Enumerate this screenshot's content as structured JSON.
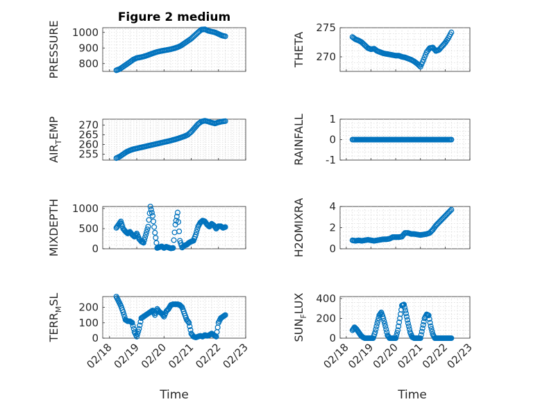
{
  "figure": {
    "title": "Figure 2 medium",
    "marker_color": "#0072bd"
  },
  "chart_data": [
    {
      "type": "scatter",
      "ylabel": "PRESSURE",
      "title": "Figure 2 medium",
      "ylim": [
        750,
        1030
      ],
      "yticks": [
        800,
        900,
        1000
      ],
      "ytick_labels": [
        "800",
        "900",
        "1000"
      ],
      "grid": true,
      "x": [
        "02/18 06:00",
        "02/18 09:00",
        "02/18 12:00",
        "02/18 15:00",
        "02/18 18:00",
        "02/18 21:00",
        "02/19 00:00",
        "02/19 03:00",
        "02/19 06:00",
        "02/19 09:00",
        "02/19 12:00",
        "02/19 15:00",
        "02/19 18:00",
        "02/19 21:00",
        "02/20 00:00",
        "02/20 03:00",
        "02/20 06:00",
        "02/20 09:00",
        "02/20 12:00",
        "02/20 15:00",
        "02/20 18:00",
        "02/20 21:00",
        "02/21 00:00",
        "02/21 03:00",
        "02/21 06:00",
        "02/21 09:00",
        "02/21 12:00",
        "02/21 15:00",
        "02/21 18:00",
        "02/21 21:00",
        "02/22 00:00",
        "02/22 03:00",
        "02/22 06:00"
      ],
      "y": [
        757,
        765,
        780,
        795,
        810,
        826,
        836,
        840,
        845,
        852,
        860,
        868,
        875,
        880,
        884,
        888,
        892,
        898,
        905,
        915,
        930,
        945,
        960,
        980,
        1000,
        1018,
        1020,
        1010,
        1005,
        1000,
        990,
        980,
        975
      ]
    },
    {
      "type": "scatter",
      "ylabel": "THETA",
      "ylim": [
        267.5,
        275
      ],
      "yticks": [
        270,
        275
      ],
      "ytick_labels": [
        "270",
        "275"
      ],
      "grid": true,
      "x": [
        "02/18 06:00",
        "02/18 09:00",
        "02/18 12:00",
        "02/18 15:00",
        "02/18 18:00",
        "02/18 21:00",
        "02/19 00:00",
        "02/19 03:00",
        "02/19 06:00",
        "02/19 09:00",
        "02/19 12:00",
        "02/19 15:00",
        "02/19 18:00",
        "02/19 21:00",
        "02/20 00:00",
        "02/20 03:00",
        "02/20 06:00",
        "02/20 09:00",
        "02/20 12:00",
        "02/20 15:00",
        "02/20 18:00",
        "02/20 21:00",
        "02/21 00:00",
        "02/21 03:00",
        "02/21 06:00",
        "02/21 09:00",
        "02/21 12:00",
        "02/21 15:00",
        "02/21 18:00",
        "02/21 21:00",
        "02/22 00:00",
        "02/22 03:00",
        "02/22 06:00"
      ],
      "y": [
        273.4,
        273.0,
        272.8,
        272.5,
        272.0,
        271.5,
        271.3,
        271.4,
        271.0,
        270.8,
        270.6,
        270.5,
        270.4,
        270.3,
        270.2,
        270.2,
        270.0,
        269.9,
        269.7,
        269.5,
        269.2,
        268.8,
        268.3,
        269.5,
        270.8,
        271.5,
        271.6,
        271.0,
        271.2,
        271.8,
        272.4,
        273.2,
        274.2
      ]
    },
    {
      "type": "scatter",
      "ylabel": "AIR_T_EMP",
      "ylim": [
        252,
        273
      ],
      "yticks": [
        255,
        260,
        265,
        270
      ],
      "ytick_labels": [
        "255",
        "260",
        "265",
        "270"
      ],
      "grid": true,
      "x": [
        "02/18 06:00",
        "02/18 09:00",
        "02/18 12:00",
        "02/18 15:00",
        "02/18 18:00",
        "02/18 21:00",
        "02/19 00:00",
        "02/19 03:00",
        "02/19 06:00",
        "02/19 09:00",
        "02/19 12:00",
        "02/19 15:00",
        "02/19 18:00",
        "02/19 21:00",
        "02/20 00:00",
        "02/20 03:00",
        "02/20 06:00",
        "02/20 09:00",
        "02/20 12:00",
        "02/20 15:00",
        "02/20 18:00",
        "02/20 21:00",
        "02/21 00:00",
        "02/21 03:00",
        "02/21 06:00",
        "02/21 09:00",
        "02/21 12:00",
        "02/21 15:00",
        "02/21 18:00",
        "02/21 21:00",
        "02/22 00:00",
        "02/22 03:00",
        "02/22 06:00"
      ],
      "y": [
        253.0,
        253.8,
        255.0,
        256.2,
        257.0,
        257.6,
        258.0,
        258.4,
        258.8,
        259.2,
        259.6,
        260.0,
        260.4,
        260.8,
        261.2,
        261.6,
        262.0,
        262.5,
        263.0,
        263.6,
        264.2,
        265.0,
        266.5,
        268.5,
        270.5,
        271.8,
        272.2,
        271.8,
        271.2,
        270.8,
        271.4,
        271.8,
        272.0
      ]
    },
    {
      "type": "scatter",
      "ylabel": "RAINFALL",
      "ylim": [
        -1,
        1
      ],
      "yticks": [
        -1,
        0,
        1
      ],
      "ytick_labels": [
        "-1",
        "0",
        "1"
      ],
      "grid": true,
      "x": [
        "02/18 06:00",
        "02/18 09:00",
        "02/18 12:00",
        "02/18 15:00",
        "02/18 18:00",
        "02/18 21:00",
        "02/19 00:00",
        "02/19 03:00",
        "02/19 06:00",
        "02/19 09:00",
        "02/19 12:00",
        "02/19 15:00",
        "02/19 18:00",
        "02/19 21:00",
        "02/20 00:00",
        "02/20 03:00",
        "02/20 06:00",
        "02/20 09:00",
        "02/20 12:00",
        "02/20 15:00",
        "02/20 18:00",
        "02/20 21:00",
        "02/21 00:00",
        "02/21 03:00",
        "02/21 06:00",
        "02/21 09:00",
        "02/21 12:00",
        "02/21 15:00",
        "02/21 18:00",
        "02/21 21:00",
        "02/22 00:00",
        "02/22 03:00",
        "02/22 06:00"
      ],
      "y": [
        0,
        0,
        0,
        0,
        0,
        0,
        0,
        0,
        0,
        0,
        0,
        0,
        0,
        0,
        0,
        0,
        0,
        0,
        0,
        0,
        0,
        0,
        0,
        0,
        0,
        0,
        0,
        0,
        0,
        0,
        0,
        0,
        0
      ]
    },
    {
      "type": "scatter",
      "ylabel": "MIXDEPTH",
      "ylim": [
        0,
        1050
      ],
      "yticks": [
        0,
        500,
        1000
      ],
      "ytick_labels": [
        "0",
        "500",
        "1000"
      ],
      "grid": true,
      "x": [
        "02/18 06:00",
        "02/18 08:00",
        "02/18 10:00",
        "02/18 12:00",
        "02/18 14:00",
        "02/18 16:00",
        "02/18 18:00",
        "02/18 20:00",
        "02/18 22:00",
        "02/19 00:00",
        "02/19 02:00",
        "02/19 04:00",
        "02/19 06:00",
        "02/19 08:00",
        "02/19 10:00",
        "02/19 12:00",
        "02/19 14:00",
        "02/19 16:00",
        "02/19 18:00",
        "02/19 20:00",
        "02/19 22:00",
        "02/20 00:00",
        "02/20 02:00",
        "02/20 04:00",
        "02/20 06:00",
        "02/20 08:00",
        "02/20 10:00",
        "02/20 12:00",
        "02/20 14:00",
        "02/20 16:00",
        "02/20 18:00",
        "02/20 20:00",
        "02/20 22:00",
        "02/21 00:00",
        "02/21 02:00",
        "02/21 04:00",
        "02/21 06:00",
        "02/21 08:00",
        "02/21 10:00",
        "02/21 12:00",
        "02/21 14:00",
        "02/21 16:00",
        "02/21 18:00",
        "02/21 20:00",
        "02/21 22:00",
        "02/22 00:00",
        "02/22 02:00",
        "02/22 04:00",
        "02/22 06:00"
      ],
      "y": [
        520,
        600,
        680,
        500,
        430,
        380,
        420,
        350,
        300,
        380,
        250,
        180,
        150,
        350,
        550,
        1050,
        820,
        400,
        20,
        40,
        60,
        20,
        50,
        30,
        10,
        20,
        600,
        900,
        200,
        30,
        80,
        100,
        150,
        180,
        200,
        350,
        550,
        650,
        700,
        680,
        600,
        550,
        620,
        580,
        500,
        560,
        560,
        520,
        540
      ]
    },
    {
      "type": "scatter",
      "ylabel": "H2OMIXRA",
      "ylim": [
        0,
        4
      ],
      "yticks": [
        0,
        2,
        4
      ],
      "ytick_labels": [
        "0",
        "2",
        "4"
      ],
      "grid": true,
      "x": [
        "02/18 06:00",
        "02/18 09:00",
        "02/18 12:00",
        "02/18 15:00",
        "02/18 18:00",
        "02/18 21:00",
        "02/19 00:00",
        "02/19 03:00",
        "02/19 06:00",
        "02/19 09:00",
        "02/19 12:00",
        "02/19 15:00",
        "02/19 18:00",
        "02/19 21:00",
        "02/20 00:00",
        "02/20 03:00",
        "02/20 06:00",
        "02/20 09:00",
        "02/20 12:00",
        "02/20 15:00",
        "02/20 18:00",
        "02/20 21:00",
        "02/21 00:00",
        "02/21 03:00",
        "02/21 06:00",
        "02/21 09:00",
        "02/21 12:00",
        "02/21 15:00",
        "02/21 18:00",
        "02/21 21:00",
        "02/22 00:00",
        "02/22 03:00",
        "02/22 06:00"
      ],
      "y": [
        0.8,
        0.75,
        0.8,
        0.75,
        0.8,
        0.85,
        0.8,
        0.75,
        0.8,
        0.85,
        0.9,
        0.9,
        0.95,
        1.1,
        1.1,
        1.1,
        1.15,
        1.5,
        1.5,
        1.4,
        1.4,
        1.35,
        1.3,
        1.35,
        1.4,
        1.5,
        1.8,
        2.2,
        2.5,
        2.8,
        3.1,
        3.4,
        3.7
      ]
    },
    {
      "type": "scatter",
      "ylabel": "TERR_M_SL",
      "ylim": [
        0,
        270
      ],
      "yticks": [
        0,
        100,
        200
      ],
      "ytick_labels": [
        "0",
        "100",
        "200"
      ],
      "grid": true,
      "x": [
        "02/18 06:00",
        "02/18 08:00",
        "02/18 10:00",
        "02/18 12:00",
        "02/18 14:00",
        "02/18 16:00",
        "02/18 18:00",
        "02/18 20:00",
        "02/18 22:00",
        "02/19 00:00",
        "02/19 02:00",
        "02/19 04:00",
        "02/19 06:00",
        "02/19 08:00",
        "02/19 10:00",
        "02/19 12:00",
        "02/19 14:00",
        "02/19 16:00",
        "02/19 18:00",
        "02/19 20:00",
        "02/19 22:00",
        "02/20 00:00",
        "02/20 02:00",
        "02/20 04:00",
        "02/20 06:00",
        "02/20 08:00",
        "02/20 10:00",
        "02/20 12:00",
        "02/20 14:00",
        "02/20 16:00",
        "02/20 18:00",
        "02/20 20:00",
        "02/20 22:00",
        "02/21 00:00",
        "02/21 02:00",
        "02/21 04:00",
        "02/21 06:00",
        "02/21 08:00",
        "02/21 10:00",
        "02/21 12:00",
        "02/21 14:00",
        "02/21 16:00",
        "02/21 18:00",
        "02/21 20:00",
        "02/21 22:00",
        "02/22 00:00",
        "02/22 02:00",
        "02/22 04:00",
        "02/22 06:00"
      ],
      "y": [
        270,
        240,
        210,
        170,
        120,
        110,
        110,
        100,
        40,
        10,
        60,
        130,
        140,
        150,
        160,
        170,
        180,
        150,
        190,
        170,
        160,
        140,
        175,
        190,
        215,
        220,
        220,
        220,
        215,
        200,
        160,
        120,
        100,
        30,
        10,
        5,
        10,
        15,
        10,
        20,
        15,
        20,
        30,
        20,
        10,
        100,
        130,
        140,
        150
      ]
    },
    {
      "type": "scatter",
      "ylabel": "SUN_F_LUX",
      "ylim": [
        0,
        420
      ],
      "yticks": [
        0,
        200,
        400
      ],
      "ytick_labels": [
        "0",
        "200",
        "400"
      ],
      "grid": true,
      "x": [
        "02/18 06:00",
        "02/18 08:00",
        "02/18 10:00",
        "02/18 12:00",
        "02/18 14:00",
        "02/18 16:00",
        "02/18 18:00",
        "02/18 20:00",
        "02/18 22:00",
        "02/19 00:00",
        "02/19 02:00",
        "02/19 04:00",
        "02/19 06:00",
        "02/19 08:00",
        "02/19 10:00",
        "02/19 12:00",
        "02/19 14:00",
        "02/19 16:00",
        "02/19 18:00",
        "02/19 20:00",
        "02/19 22:00",
        "02/20 00:00",
        "02/20 02:00",
        "02/20 04:00",
        "02/20 06:00",
        "02/20 08:00",
        "02/20 10:00",
        "02/20 12:00",
        "02/20 14:00",
        "02/20 16:00",
        "02/20 18:00",
        "02/20 20:00",
        "02/20 22:00",
        "02/21 00:00",
        "02/21 02:00",
        "02/21 04:00",
        "02/21 06:00",
        "02/21 08:00",
        "02/21 10:00",
        "02/21 12:00",
        "02/21 14:00",
        "02/21 16:00",
        "02/21 18:00",
        "02/21 20:00",
        "02/21 22:00",
        "02/22 00:00",
        "02/22 02:00",
        "02/22 04:00",
        "02/22 06:00"
      ],
      "y": [
        80,
        110,
        90,
        60,
        30,
        10,
        0,
        0,
        0,
        0,
        0,
        60,
        150,
        230,
        260,
        200,
        120,
        30,
        0,
        0,
        0,
        0,
        80,
        200,
        330,
        340,
        250,
        150,
        60,
        10,
        0,
        0,
        0,
        0,
        100,
        200,
        240,
        230,
        120,
        40,
        0,
        0,
        0,
        0,
        0,
        0,
        0,
        0,
        0
      ]
    }
  ],
  "xaxis": {
    "tick_labels": [
      "02/18",
      "02/19",
      "02/20",
      "02/21",
      "02/22",
      "02/23"
    ],
    "label": "Time"
  }
}
